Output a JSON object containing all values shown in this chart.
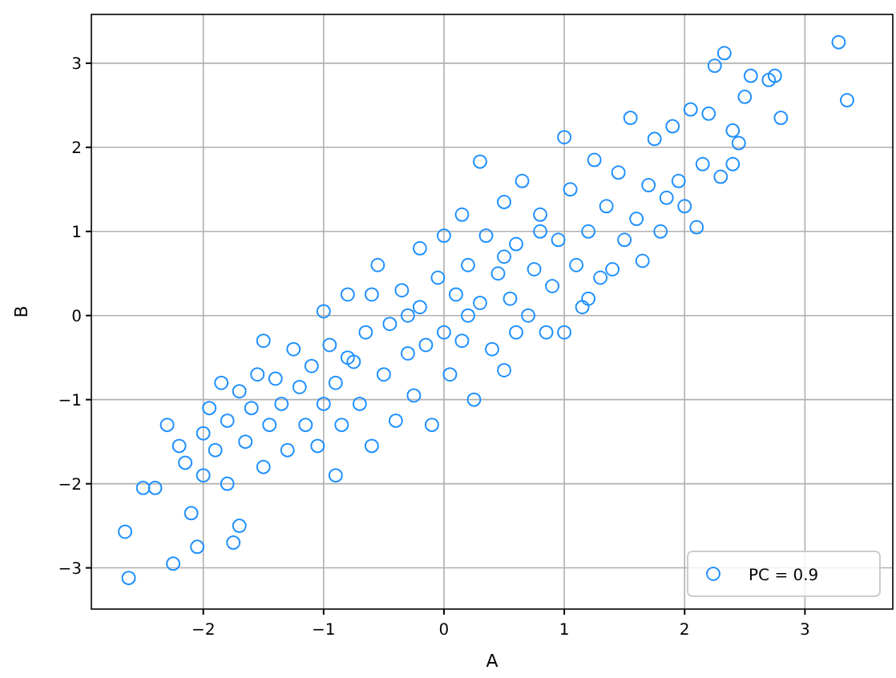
{
  "chart_data": {
    "type": "scatter",
    "xlabel": "A",
    "ylabel": "B",
    "xlim": [
      -2.93,
      3.73
    ],
    "ylim": [
      -3.49,
      3.58
    ],
    "xticks": [
      -2,
      -1,
      0,
      1,
      2,
      3
    ],
    "yticks": [
      -3,
      -2,
      -1,
      0,
      1,
      2,
      3
    ],
    "grid": true,
    "legend": "bottom right",
    "marker": "circle",
    "series": [
      {
        "name": "PC = 0.9",
        "color": "#1e90ff",
        "x": [
          -2.65,
          -2.62,
          -2.5,
          -2.4,
          -2.3,
          -2.25,
          -2.2,
          -2.15,
          -2.1,
          -2.05,
          -2.0,
          -2.0,
          -1.95,
          -1.9,
          -1.8,
          -1.8,
          -1.75,
          -1.7,
          -1.7,
          -1.65,
          -1.6,
          -1.55,
          -1.5,
          -1.5,
          -1.45,
          -1.4,
          -1.35,
          -1.3,
          -1.25,
          -1.2,
          -1.15,
          -1.1,
          -1.05,
          -1.0,
          -1.0,
          -0.95,
          -0.9,
          -0.9,
          -0.85,
          -0.8,
          -0.75,
          -0.7,
          -0.65,
          -0.6,
          -0.55,
          -0.5,
          -0.45,
          -0.4,
          -0.35,
          -0.3,
          -0.25,
          -0.2,
          -0.2,
          -0.15,
          -0.1,
          -0.05,
          0.0,
          0.0,
          0.05,
          0.1,
          0.15,
          0.15,
          0.2,
          0.25,
          0.3,
          0.3,
          0.35,
          0.4,
          0.45,
          0.5,
          0.5,
          0.55,
          0.6,
          0.65,
          0.7,
          0.75,
          0.8,
          0.85,
          0.9,
          0.95,
          1.0,
          1.0,
          1.05,
          1.1,
          1.15,
          1.2,
          1.25,
          1.3,
          1.35,
          1.4,
          1.45,
          1.5,
          1.55,
          1.6,
          1.65,
          1.7,
          1.75,
          1.8,
          1.85,
          1.9,
          1.95,
          2.0,
          2.05,
          2.1,
          2.15,
          2.2,
          2.25,
          2.3,
          2.33,
          2.4,
          2.45,
          2.5,
          2.55,
          2.7,
          2.75,
          2.8,
          3.28,
          3.35,
          2.4,
          -0.6,
          0.6,
          1.2,
          -1.85,
          0.8,
          -0.3,
          0.2,
          0.5,
          -0.8
        ],
        "values": [
          -2.57,
          -3.12,
          -2.05,
          -2.05,
          -1.3,
          -2.95,
          -1.55,
          -1.75,
          -2.35,
          -2.75,
          -1.9,
          -1.4,
          -1.1,
          -1.6,
          -1.25,
          -2.0,
          -2.7,
          -2.5,
          -0.9,
          -1.5,
          -1.1,
          -0.7,
          -0.3,
          -1.8,
          -1.3,
          -0.75,
          -1.05,
          -1.6,
          -0.4,
          -0.85,
          -1.3,
          -0.6,
          -1.55,
          0.05,
          -1.05,
          -0.35,
          -1.9,
          -0.8,
          -1.3,
          0.25,
          -0.55,
          -1.05,
          -0.2,
          -1.55,
          0.6,
          -0.7,
          -0.1,
          -1.25,
          0.3,
          -0.45,
          -0.95,
          0.8,
          0.1,
          -0.35,
          -1.3,
          0.45,
          -0.2,
          0.95,
          -0.7,
          0.25,
          1.2,
          -0.3,
          0.6,
          -1.0,
          1.83,
          0.15,
          0.95,
          -0.4,
          0.5,
          1.35,
          -0.65,
          0.2,
          0.85,
          1.6,
          0.0,
          0.55,
          1.2,
          -0.2,
          0.35,
          0.9,
          2.12,
          -0.2,
          1.5,
          0.6,
          0.1,
          1.0,
          1.85,
          0.45,
          1.3,
          0.55,
          1.7,
          0.9,
          2.35,
          1.15,
          0.65,
          1.55,
          2.1,
          1.0,
          1.4,
          2.25,
          1.6,
          1.3,
          2.45,
          1.05,
          1.8,
          2.4,
          2.97,
          1.65,
          3.12,
          2.2,
          2.05,
          2.6,
          2.85,
          2.8,
          2.85,
          2.35,
          3.25,
          2.56,
          1.8,
          0.25,
          -0.2,
          0.2,
          -0.8,
          1.0,
          0.0,
          0.0,
          0.7,
          -0.5
        ]
      }
    ]
  }
}
